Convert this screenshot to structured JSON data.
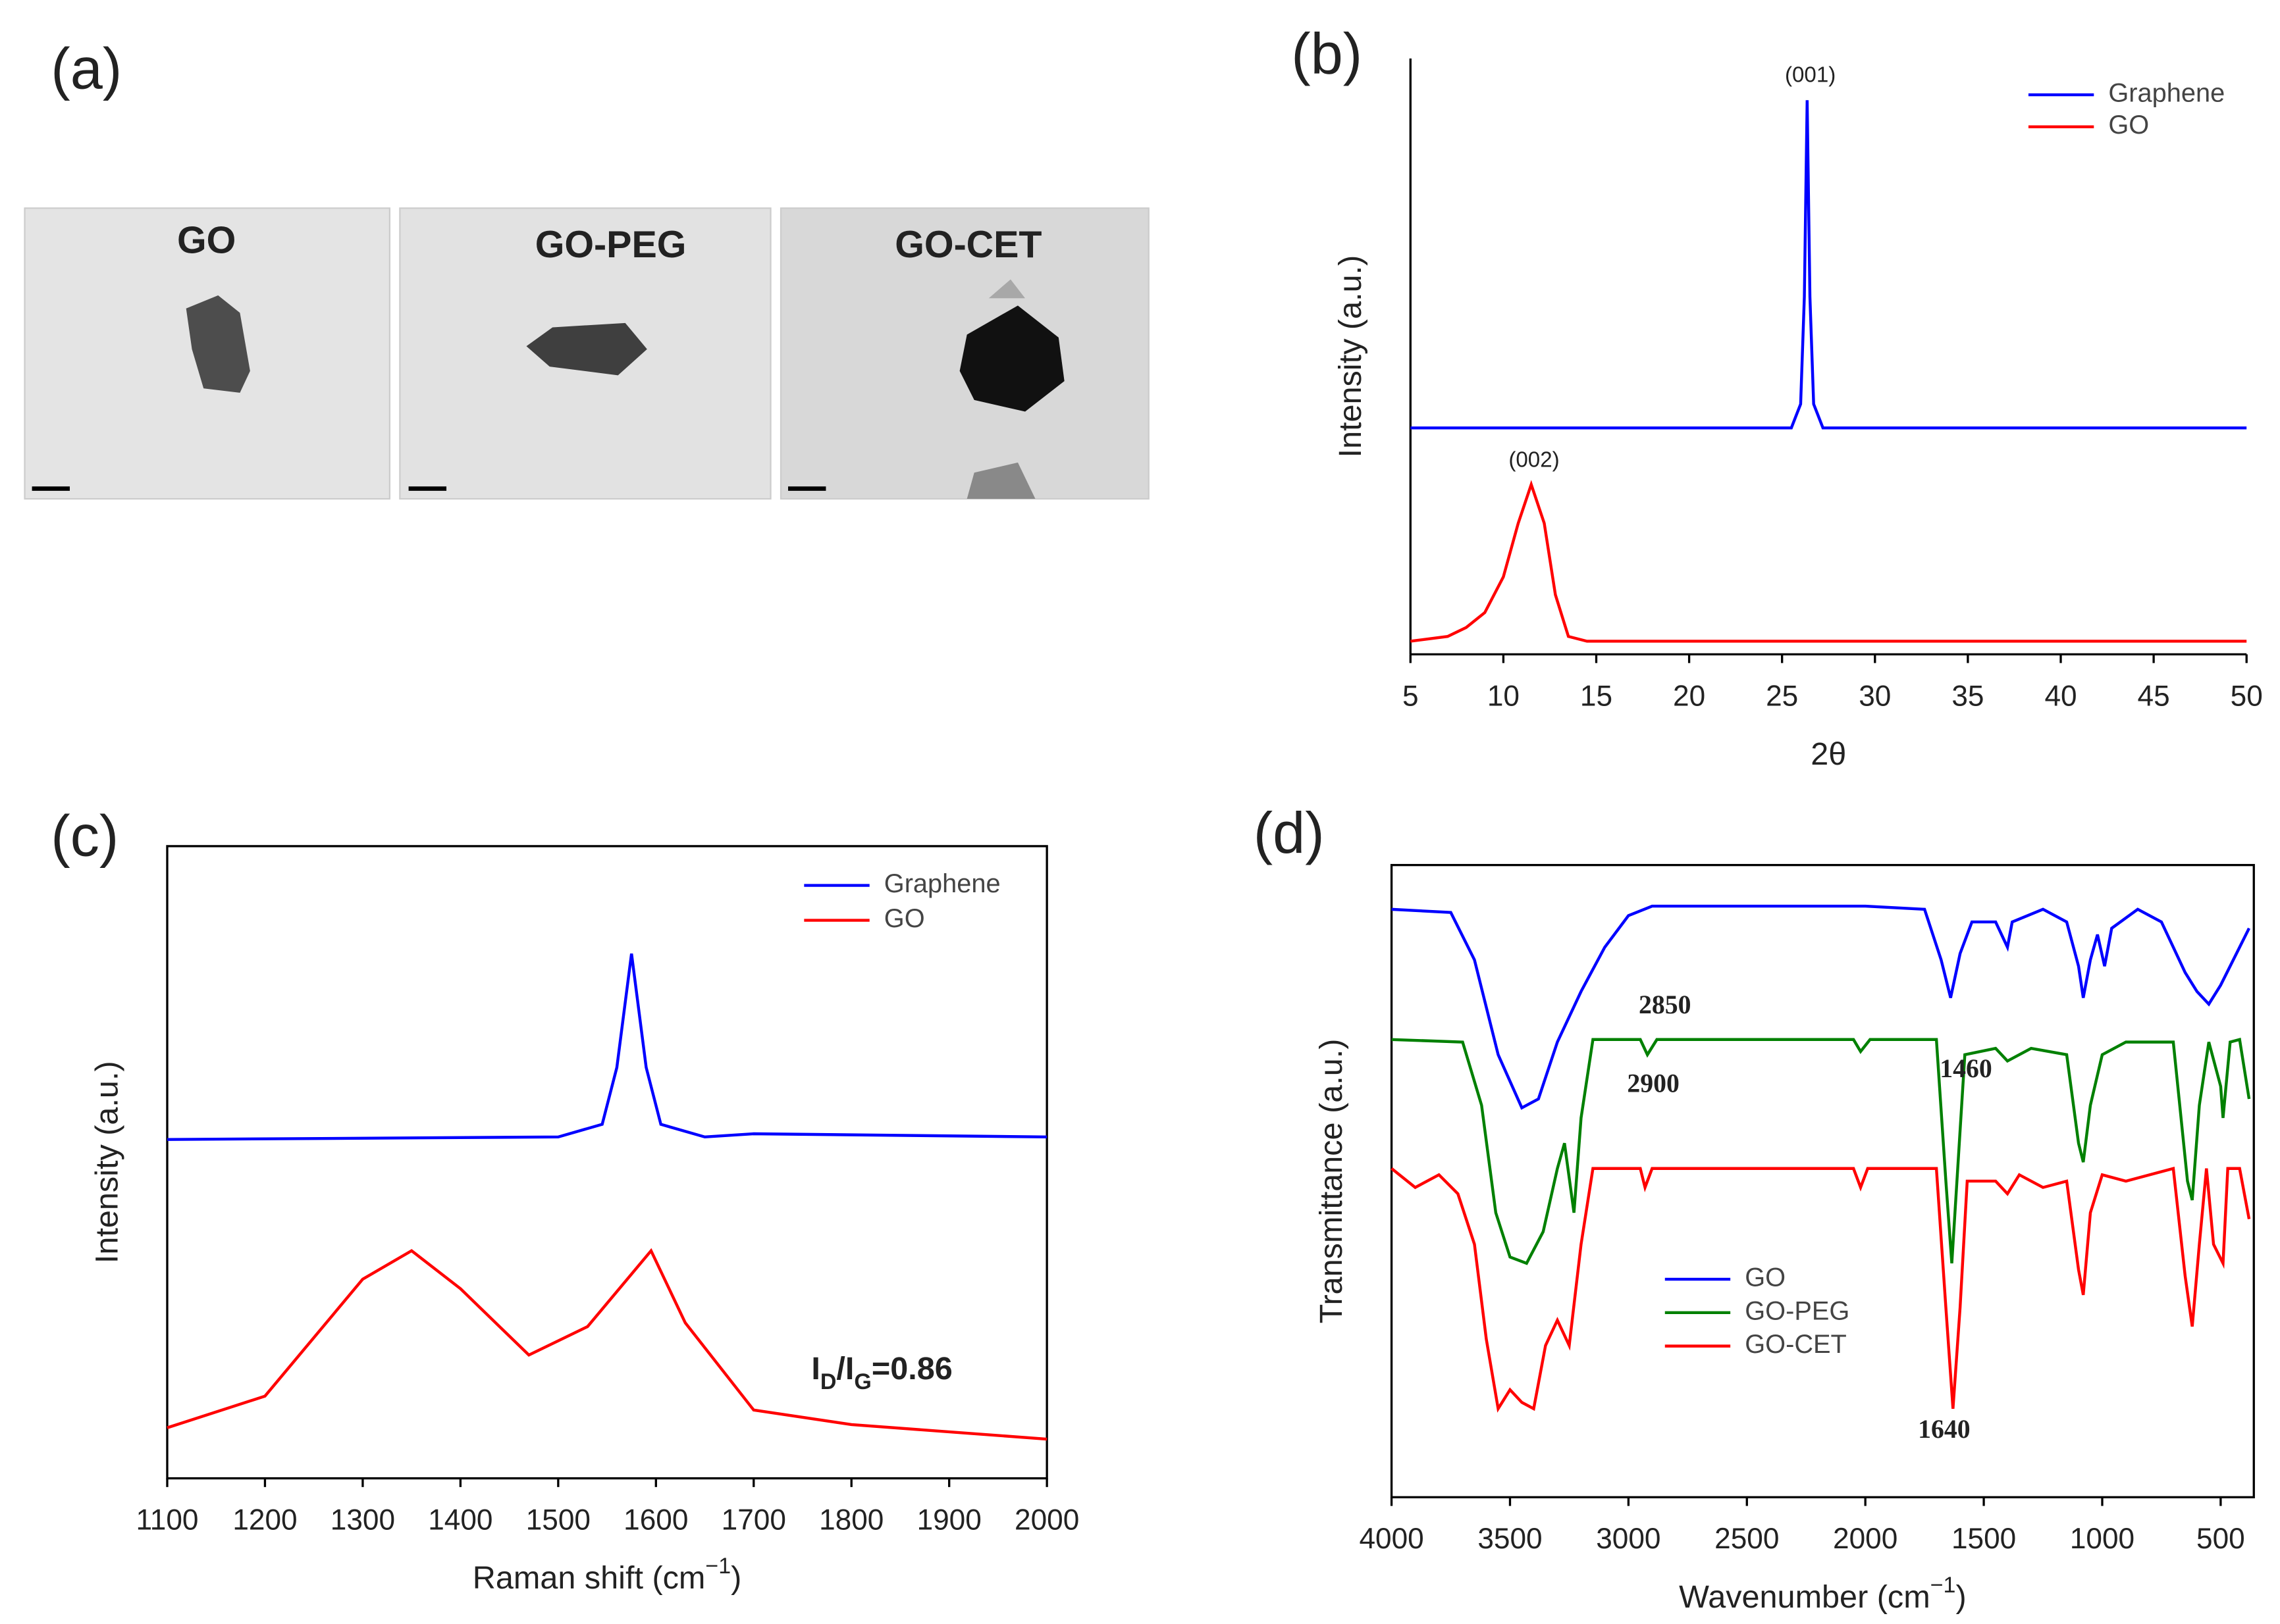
{
  "panels": {
    "labels": [
      "(a)",
      "(b)",
      "(c)",
      "(d)"
    ],
    "tem_images": [
      "GO",
      "GO-PEG",
      "GO-CET"
    ]
  },
  "chart_data": [
    {
      "type": "line",
      "xlabel": [
        "2θ"
      ],
      "ylabel": "Intensity (a.u.)",
      "xlim": [
        5,
        50
      ],
      "xticks": [
        5,
        10,
        15,
        20,
        25,
        30,
        35,
        40,
        45,
        50
      ],
      "ylim": [
        0,
        100
      ],
      "annotations": [
        [
          "(001)"
        ],
        [
          "(002)"
        ]
      ],
      "series": [
        {
          "name": "Graphene",
          "color": "#0000ff",
          "x": [
            5,
            25.5,
            26,
            26.2,
            26.35,
            26.5,
            26.7,
            27.2,
            50
          ],
          "values": [
            38,
            38,
            42,
            60,
            93,
            60,
            42,
            38,
            38
          ]
        },
        {
          "name": "GO",
          "color": "#ff0000",
          "x": [
            5,
            7,
            8,
            9,
            10,
            10.8,
            11.5,
            12.2,
            12.8,
            13.5,
            14.5,
            50
          ],
          "values": [
            2.2,
            3,
            4.5,
            7,
            13,
            22,
            28.5,
            22,
            10,
            3,
            2.2,
            2.2
          ]
        }
      ]
    },
    {
      "type": "line",
      "xlabel": [
        "Raman shift (cm",
        "−1",
        ")"
      ],
      "ylabel": "Intensity (a.u.)",
      "xlim": [
        1100,
        2000
      ],
      "xticks": [
        1100,
        1200,
        1300,
        1400,
        1500,
        1600,
        1700,
        1800,
        1900,
        2000
      ],
      "ylim": [
        0,
        100
      ],
      "annotations": [
        [
          "I",
          "D",
          "/I",
          "G",
          "=0.86"
        ]
      ],
      "series": [
        {
          "name": "Graphene",
          "color": "#0000ff",
          "x": [
            1100,
            1500,
            1545,
            1560,
            1575,
            1590,
            1605,
            1650,
            1700,
            2000
          ],
          "values": [
            53.6,
            54,
            56,
            65,
            83,
            65,
            56,
            54,
            54.5,
            54
          ]
        },
        {
          "name": "GO",
          "color": "#ff0000",
          "x": [
            1100,
            1200,
            1300,
            1350,
            1400,
            1470,
            1530,
            1595,
            1630,
            1700,
            1800,
            2000
          ],
          "values": [
            8,
            13,
            31.5,
            36,
            30,
            19.5,
            24,
            36,
            24.6,
            10.8,
            8.5,
            6.2
          ]
        }
      ]
    },
    {
      "type": "line",
      "xlabel": [
        "Wavenumber (cm",
        "−1",
        ")"
      ],
      "ylabel": "Transmittance (a.u.)",
      "xlim": [
        4000,
        360
      ],
      "xticks": [
        4000,
        3500,
        3000,
        2500,
        2000,
        1500,
        1000,
        500
      ],
      "ylim": [
        0,
        100
      ],
      "annotations": [
        [
          "2850"
        ],
        [
          "2900"
        ],
        [
          "1460"
        ],
        [
          "1640"
        ]
      ],
      "series": [
        {
          "name": "GO",
          "color": "#0000ff",
          "x": [
            4000,
            3750,
            3650,
            3550,
            3450,
            3380,
            3300,
            3200,
            3100,
            3000,
            2900,
            2500,
            2000,
            1750,
            1680,
            1640,
            1600,
            1550,
            1450,
            1400,
            1380,
            1250,
            1150,
            1100,
            1080,
            1050,
            1020,
            990,
            960,
            850,
            750,
            650,
            600,
            550,
            500,
            420,
            380
          ],
          "values": [
            93,
            92.5,
            85,
            70,
            61.6,
            63,
            72,
            80,
            87,
            92,
            93.5,
            93.5,
            93.5,
            93,
            85,
            79,
            86,
            91,
            91,
            87,
            91,
            93,
            91,
            84,
            79,
            85,
            89,
            84,
            90,
            93,
            91,
            83,
            80,
            78,
            81,
            87,
            90
          ]
        },
        {
          "name": "GO-PEG",
          "color": "#008000",
          "x": [
            4000,
            3700,
            3620,
            3560,
            3500,
            3430,
            3360,
            3300,
            3270,
            3230,
            3200,
            3150,
            2950,
            2920,
            2880,
            2050,
            2020,
            1980,
            1700,
            1660,
            1635,
            1610,
            1580,
            1450,
            1400,
            1300,
            1150,
            1100,
            1080,
            1050,
            1000,
            900,
            700,
            640,
            620,
            590,
            550,
            500,
            490,
            460,
            420,
            380
          ],
          "values": [
            72.4,
            72,
            62,
            45,
            38,
            37,
            42,
            52,
            56,
            45,
            60,
            72.4,
            72.4,
            70,
            72.4,
            72.4,
            70.5,
            72.4,
            72.4,
            50,
            37,
            52,
            70,
            71,
            69,
            71,
            70,
            56,
            53,
            62,
            70,
            72,
            72,
            50,
            47,
            62,
            72,
            65,
            60,
            72,
            72.4,
            63
          ]
        },
        {
          "name": "GO-CET",
          "color": "#ff0000",
          "x": [
            4000,
            3900,
            3800,
            3720,
            3650,
            3600,
            3550,
            3500,
            3450,
            3400,
            3350,
            3300,
            3250,
            3200,
            3150,
            2950,
            2930,
            2900,
            2050,
            2020,
            1990,
            1700,
            1660,
            1630,
            1600,
            1570,
            1450,
            1400,
            1350,
            1250,
            1150,
            1100,
            1080,
            1050,
            1000,
            900,
            700,
            650,
            620,
            590,
            560,
            530,
            490,
            470,
            420,
            380
          ],
          "values": [
            52,
            49,
            51,
            48,
            40,
            25,
            14,
            17,
            15,
            14,
            24,
            28,
            24,
            40,
            52,
            52,
            49,
            52,
            52,
            49,
            52,
            52,
            30,
            14,
            30,
            50,
            50,
            48,
            51,
            49,
            50,
            36,
            32,
            45,
            51,
            50,
            52,
            35,
            27,
            40,
            52,
            40,
            37,
            52,
            52,
            44
          ]
        }
      ]
    }
  ]
}
